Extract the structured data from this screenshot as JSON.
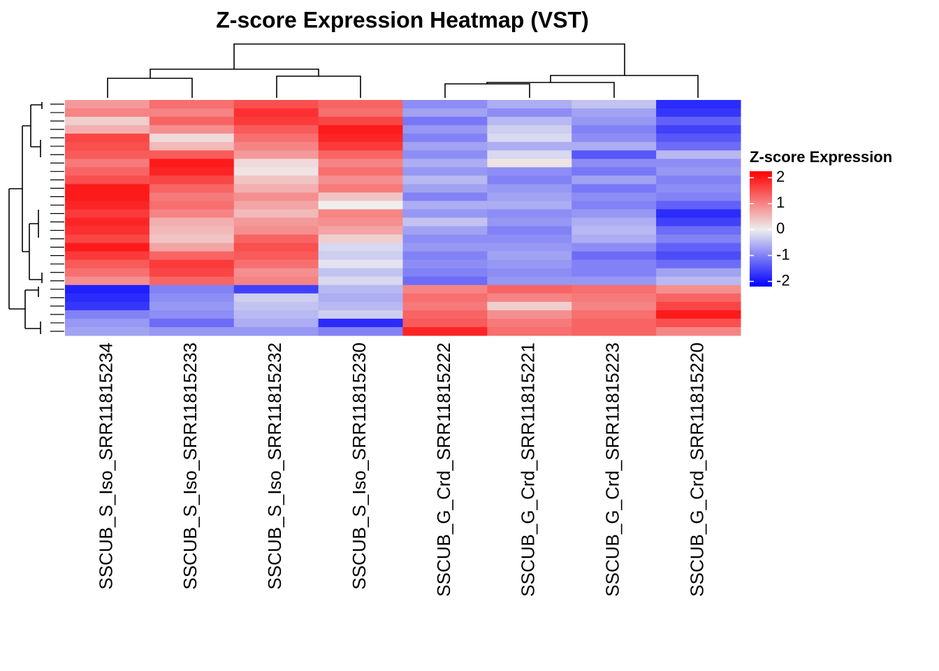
{
  "chart_data": {
    "type": "heatmap",
    "title": "Z-score Expression Heatmap (VST)",
    "columns": [
      "SSCUB_S_Iso_SRR11815234",
      "SSCUB_S_Iso_SRR11815233",
      "SSCUB_S_Iso_SRR11815232",
      "SSCUB_S_Iso_SRR11815230",
      "SSCUB_G_Crd_SRR11815222",
      "SSCUB_G_Crd_SRR11815221",
      "SSCUB_G_Crd_SRR11815223",
      "SSCUB_G_Crd_SRR11815220"
    ],
    "values": [
      [
        0.8,
        1.2,
        1.5,
        1.3,
        -0.9,
        -0.6,
        -0.4,
        -1.8
      ],
      [
        1.0,
        1.0,
        1.8,
        1.2,
        -0.7,
        -0.9,
        -0.7,
        -1.7
      ],
      [
        0.3,
        1.3,
        1.7,
        1.6,
        -1.1,
        -0.5,
        -0.8,
        -1.3
      ],
      [
        0.6,
        0.9,
        1.4,
        2.0,
        -0.8,
        -0.3,
        -1.0,
        -1.6
      ],
      [
        1.6,
        0.2,
        1.2,
        1.9,
        -1.0,
        -0.2,
        -0.9,
        -1.4
      ],
      [
        1.5,
        0.5,
        1.0,
        1.7,
        -0.7,
        -0.6,
        -0.6,
        -1.2
      ],
      [
        1.4,
        1.4,
        0.8,
        1.3,
        -0.9,
        -0.2,
        -1.4,
        -0.5
      ],
      [
        1.1,
        2.0,
        0.2,
        1.0,
        -0.6,
        0.1,
        -0.9,
        -0.9
      ],
      [
        1.3,
        1.9,
        0.1,
        1.2,
        -0.8,
        -0.9,
        -1.1,
        -0.8
      ],
      [
        1.5,
        1.6,
        0.4,
        0.9,
        -0.5,
        -1.0,
        -0.7,
        -1.0
      ],
      [
        2.0,
        1.3,
        0.6,
        1.1,
        -0.7,
        -0.8,
        -1.1,
        -0.9
      ],
      [
        2.0,
        1.1,
        0.9,
        0.4,
        -1.0,
        -0.7,
        -0.9,
        -1.0
      ],
      [
        1.9,
        1.2,
        0.7,
        0.0,
        -0.6,
        -0.6,
        -1.0,
        -1.3
      ],
      [
        1.7,
        1.0,
        0.5,
        1.0,
        -0.8,
        -0.9,
        -0.8,
        -1.8
      ],
      [
        1.9,
        0.6,
        0.8,
        0.9,
        -0.4,
        -0.8,
        -0.6,
        -1.6
      ],
      [
        1.8,
        0.5,
        0.9,
        0.7,
        -0.7,
        -1.0,
        -0.5,
        -1.2
      ],
      [
        1.6,
        0.4,
        1.3,
        0.3,
        -0.9,
        -0.9,
        -0.6,
        -1.0
      ],
      [
        2.0,
        0.7,
        1.5,
        -0.2,
        -0.8,
        -0.8,
        -0.9,
        -1.3
      ],
      [
        1.7,
        1.3,
        1.4,
        -0.3,
        -1.0,
        -0.7,
        -1.2,
        -1.5
      ],
      [
        1.4,
        1.7,
        1.2,
        -0.1,
        -0.9,
        -0.8,
        -1.0,
        -1.2
      ],
      [
        1.2,
        1.6,
        0.9,
        -0.4,
        -1.0,
        -0.9,
        -1.0,
        -0.7
      ],
      [
        0.9,
        1.3,
        1.0,
        -0.2,
        -1.2,
        -0.8,
        -0.8,
        -0.5
      ],
      [
        -1.9,
        -1.0,
        -1.6,
        -0.5,
        1.0,
        1.3,
        1.2,
        0.9
      ],
      [
        -1.8,
        -0.9,
        -0.3,
        -0.6,
        1.2,
        1.0,
        1.1,
        1.3
      ],
      [
        -1.7,
        -0.8,
        -0.4,
        -0.5,
        1.1,
        0.3,
        1.0,
        1.6
      ],
      [
        -1.0,
        -0.9,
        -0.5,
        -0.3,
        1.3,
        0.9,
        1.2,
        2.0
      ],
      [
        -0.8,
        -1.2,
        -0.6,
        -1.8,
        1.4,
        1.1,
        1.3,
        1.5
      ],
      [
        -0.7,
        -0.8,
        -0.8,
        -1.0,
        1.9,
        1.2,
        1.3,
        1.0
      ]
    ],
    "legend_title": "Z-score Expression",
    "zlim": [
      -2.2,
      2.25
    ],
    "zticks": [
      2,
      1,
      0,
      {
        "value": -1,
        "label": "-1"
      },
      {
        "value": -2,
        "label": "-2"
      }
    ],
    "colors": {
      "low": "#0000ff",
      "mid": "#eeeeee",
      "high": "#ff0000"
    }
  }
}
